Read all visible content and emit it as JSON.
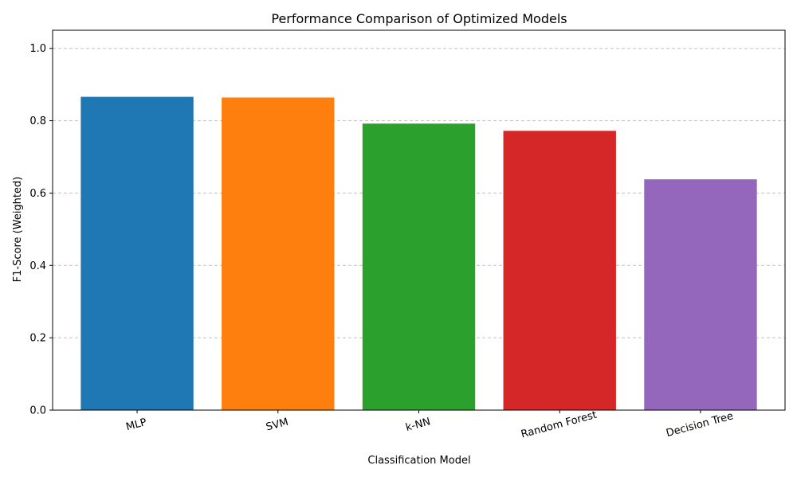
{
  "chart_data": {
    "type": "bar",
    "title": "Performance Comparison of Optimized Models",
    "xlabel": "Classification Model",
    "ylabel": "F1-Score (Weighted)",
    "categories": [
      "MLP",
      "SVM",
      "k-NN",
      "Random Forest",
      "Decision Tree"
    ],
    "values": [
      0.866,
      0.864,
      0.792,
      0.772,
      0.638
    ],
    "colors": [
      "#1f77b4",
      "#ff7f0e",
      "#2ca02c",
      "#d62728",
      "#9467bd"
    ],
    "ylim": [
      0,
      1.05
    ],
    "yticks": [
      0.0,
      0.2,
      0.4,
      0.6,
      0.8,
      1.0
    ],
    "ytick_labels": [
      "0.0",
      "0.2",
      "0.4",
      "0.6",
      "0.8",
      "1.0"
    ],
    "grid": "y-dashed",
    "legend": "none"
  }
}
